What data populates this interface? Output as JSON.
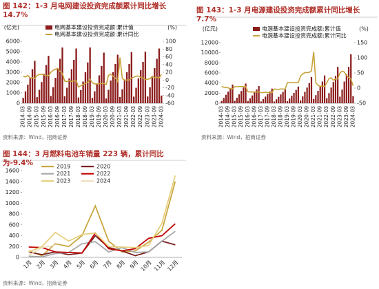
{
  "chart_data": [
    {
      "type": "bar",
      "title": "图 142：1-3 月电网建设投资完成额累计同比增长 14.7%",
      "y_label": "(亿元)",
      "y2_label": "(%)",
      "source": "资料来源：Wind，招商证券",
      "categories": [
        "2014-03",
        null,
        null,
        "2014-09",
        null,
        null,
        "2015-03",
        null,
        null,
        "2015-09",
        null,
        null,
        "2016-03",
        null,
        null,
        "2016-09",
        null,
        null,
        "2017-03",
        null,
        null,
        "2017-09",
        null,
        null,
        "2018-03",
        null,
        null,
        "2018-09",
        null,
        null,
        "2019-03",
        null,
        null,
        "2019-09",
        null,
        null,
        "2020-03",
        null,
        null,
        "2020-09",
        null,
        null,
        "2021-03",
        null,
        null,
        "2021-09",
        null,
        null,
        "2022-03",
        null,
        null,
        "2022-09",
        null,
        null,
        "2023-03",
        null,
        null,
        "2023-09",
        null,
        null,
        "2024-03"
      ],
      "ylim": [
        0,
        6000
      ],
      "yticks": [
        0,
        1000,
        2000,
        3000,
        4000,
        5000,
        6000
      ],
      "y2lim": [
        -60,
        100
      ],
      "y2ticks": [
        -60,
        -40,
        -20,
        0,
        20,
        40,
        60,
        80,
        100
      ],
      "series": [
        {
          "name": "电网基本建设投资完成额:累计值",
          "type": "bar",
          "color": "#8c1c1c",
          "values": [
            520,
            1150,
            1800,
            2500,
            3300,
            4100,
            590,
            1300,
            2050,
            2850,
            3700,
            4600,
            700,
            1550,
            2450,
            3400,
            4300,
            5400,
            680,
            1500,
            2400,
            3300,
            4200,
            5300,
            560,
            1280,
            2100,
            3000,
            3950,
            5400,
            520,
            1150,
            1900,
            2700,
            3600,
            4900,
            460,
            1300,
            2200,
            3000,
            3800,
            4700,
            600,
            1350,
            2200,
            3000,
            3800,
            4950,
            640,
            1500,
            2400,
            3200,
            4000,
            5000,
            650,
            1550,
            2500,
            3400,
            4300,
            5300,
            740
          ]
        },
        {
          "name": "电网基本建设投资完成额:累计同比",
          "type": "line",
          "axis": "y2",
          "color": "#c9a23a",
          "values": [
            10,
            8,
            12,
            5,
            6,
            4,
            12,
            14,
            15,
            13,
            12,
            11,
            20,
            25,
            28,
            30,
            22,
            17,
            -3,
            -4,
            -2,
            -4,
            -2,
            -2,
            -18,
            -15,
            -12,
            -9,
            -6,
            2,
            -7,
            -10,
            -10,
            -10,
            -9,
            -9,
            -12,
            12,
            15,
            10,
            5,
            -4,
            58,
            4,
            0,
            0,
            0,
            5,
            7,
            10,
            10,
            7,
            5,
            1,
            2,
            3,
            10,
            6,
            7,
            5,
            14.7
          ]
        }
      ]
    },
    {
      "type": "bar",
      "title": "图 143：1-3 月电源建设投资完成额累计同比增长 7.7%",
      "y_label": "(亿元)",
      "y2_label": "(%)",
      "source": "资料来源：Wind，招商证券",
      "categories": [
        "2014-03",
        null,
        null,
        "2014-09",
        null,
        null,
        "2015-03",
        null,
        null,
        "2015-09",
        null,
        null,
        "2016-03",
        null,
        null,
        "2016-09",
        null,
        null,
        "2017-03",
        null,
        null,
        "2017-09",
        null,
        null,
        "2018-03",
        null,
        null,
        "2018-09",
        null,
        null,
        "2019-03",
        null,
        null,
        "2019-09",
        null,
        null,
        "2020-03",
        null,
        null,
        "2020-09",
        null,
        null,
        "2021-03",
        null,
        null,
        "2021-09",
        null,
        null,
        "2022-03",
        null,
        null,
        "2022-09",
        null,
        null,
        "2023-03",
        null,
        null,
        "2023-09",
        null,
        null,
        "2024-03"
      ],
      "ylim": [
        0,
        12000
      ],
      "yticks": [
        0,
        2000,
        4000,
        6000,
        8000,
        10000,
        12000
      ],
      "y2lim": [
        -50,
        150
      ],
      "y2ticks": [
        -50,
        0,
        50,
        100,
        150
      ],
      "series": [
        {
          "name": "电源基本建设投资完成额:累计值",
          "type": "bar",
          "color": "#8c1c1c",
          "values": [
            440,
            1040,
            1670,
            2290,
            2960,
            3700,
            470,
            1090,
            1760,
            2420,
            3120,
            3900,
            410,
            950,
            1530,
            2110,
            2720,
            3400,
            350,
            810,
            1310,
            1800,
            2320,
            2900,
            340,
            780,
            1260,
            1740,
            2240,
            2800,
            400,
            920,
            1490,
            2050,
            2640,
            3300,
            560,
            1350,
            2250,
            3100,
            4000,
            5200,
            850,
            1600,
            2450,
            3300,
            4300,
            5500,
            1000,
            2000,
            3100,
            4200,
            5400,
            7200,
            1300,
            2700,
            4300,
            5700,
            7200,
            9700,
            1400
          ]
        },
        {
          "name": "电源基本建设投资完成额:累计同比",
          "type": "line",
          "axis": "y2",
          "color": "#c9a23a",
          "values": [
            5,
            3,
            2,
            1,
            -2,
            -3,
            5,
            4,
            5,
            5,
            5,
            5,
            -12,
            -13,
            -13,
            -13,
            -13,
            -13,
            -15,
            -15,
            -14,
            -15,
            -15,
            -15,
            -3,
            -4,
            -4,
            -3,
            -3,
            -4,
            18,
            18,
            18,
            18,
            18,
            18,
            40,
            47,
            51,
            51,
            52,
            57,
            120,
            18,
            9,
            6,
            7,
            5,
            18,
            31,
            34,
            26,
            30,
            31,
            50,
            56,
            53,
            41,
            35,
            30,
            7.7
          ]
        }
      ]
    },
    {
      "type": "line",
      "title": "图 144：3 月燃料电池车销量 223 辆，累计同比为-9.4%",
      "source": "资料来源：Wind，招商证券",
      "categories": [
        "1月",
        "2月",
        "3月",
        "4月",
        "5月",
        "6月",
        "7月",
        "8月",
        "9月",
        "10月",
        "11月",
        "12月"
      ],
      "ylim": [
        0,
        1600
      ],
      "yticks": [
        0,
        200,
        400,
        600,
        800,
        1000,
        1200,
        1400,
        1600
      ],
      "series": [
        {
          "name": "2019",
          "color": "#c9a640",
          "values": [
            120,
            30,
            250,
            200,
            400,
            950,
            300,
            100,
            120,
            280,
            500,
            1400
          ]
        },
        {
          "name": "2020",
          "color": "#7a1f1f",
          "values": [
            100,
            50,
            100,
            50,
            80,
            400,
            180,
            120,
            30,
            100,
            300,
            230
          ]
        },
        {
          "name": "2021",
          "color": "#a6a6a6",
          "values": [
            20,
            10,
            70,
            90,
            250,
            290,
            100,
            180,
            90,
            100,
            300,
            480
          ]
        },
        {
          "name": "2022",
          "color": "#c00000",
          "values": [
            190,
            180,
            100,
            90,
            80,
            450,
            160,
            120,
            160,
            350,
            400,
            620
          ]
        },
        {
          "name": "2023",
          "color": "#e6d07e",
          "values": [
            100,
            200,
            460,
            300,
            420,
            450,
            200,
            190,
            180,
            220,
            630,
            1510
          ]
        },
        {
          "name": "2024",
          "color": "#efe0bc",
          "values": [
            40,
            180,
            223,
            null,
            null,
            null,
            null,
            null,
            null,
            null,
            null,
            null
          ]
        }
      ]
    }
  ]
}
